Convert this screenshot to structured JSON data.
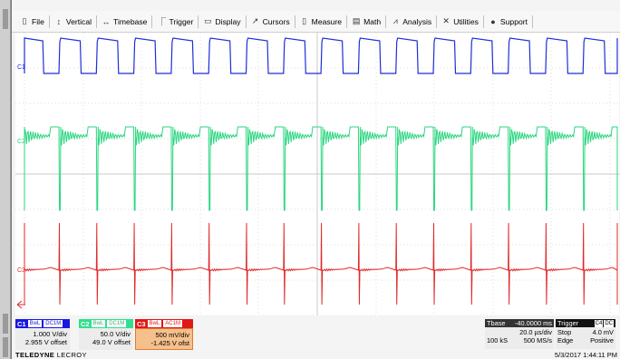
{
  "menu": [
    {
      "id": "file",
      "label": "File",
      "icon": "file-icon"
    },
    {
      "id": "vertical",
      "label": "Vertical",
      "icon": "vertical-icon"
    },
    {
      "id": "timebase",
      "label": "Timebase",
      "icon": "timebase-icon"
    },
    {
      "id": "trigger",
      "label": "Trigger",
      "icon": "trigger-icon"
    },
    {
      "id": "display",
      "label": "Display",
      "icon": "display-icon"
    },
    {
      "id": "cursors",
      "label": "Cursors",
      "icon": "cursors-icon"
    },
    {
      "id": "measure",
      "label": "Measure",
      "icon": "measure-icon"
    },
    {
      "id": "math",
      "label": "Math",
      "icon": "math-icon"
    },
    {
      "id": "analysis",
      "label": "Analysis",
      "icon": "analysis-icon"
    },
    {
      "id": "utilities",
      "label": "Utilities",
      "icon": "utilities-icon"
    },
    {
      "id": "support",
      "label": "Support",
      "icon": "support-icon"
    }
  ],
  "waveforms": {
    "c1": {
      "label": "C1",
      "color": "#1f2fd6"
    },
    "c2": {
      "label": "C2",
      "color": "#2bd67f"
    },
    "c3": {
      "label": "C3",
      "color": "#e02a2a"
    }
  },
  "channels": {
    "c1": {
      "name": "C1",
      "bw": "BwL",
      "coupling": "DC1M",
      "vdiv": "1.000 V/div",
      "offset": "2.955 V offset",
      "color": "#1818e0",
      "bg": "#ffffff"
    },
    "c2": {
      "name": "C2",
      "bw": "BwL",
      "coupling": "DC1M",
      "vdiv": "50.0 V/div",
      "offset": "49.0 V offset",
      "color": "#30e090",
      "bg": "#ffffff"
    },
    "c3": {
      "name": "C3",
      "bw": "BwL",
      "coupling": "AC1M",
      "vdiv": "500 mV/div",
      "offset": "-1.425 V ofst",
      "color": "#e01818",
      "bg": "#f5c08c"
    }
  },
  "timebase": {
    "label": "Tbase",
    "delay": "-40.0000 ms",
    "div": "20.0 µs/div",
    "samples": "100 kS",
    "rate": "500 MS/s"
  },
  "trigger": {
    "label": "Trigger",
    "source": "C4",
    "coupling": "DC",
    "mode": "Stop",
    "level": "4.0 mV",
    "type": "Edge",
    "slope": "Positive"
  },
  "brand": {
    "bold": "TELEDYNE",
    "light": "LECROY"
  },
  "datetime": "5/3/2017 1:44:11 PM"
}
